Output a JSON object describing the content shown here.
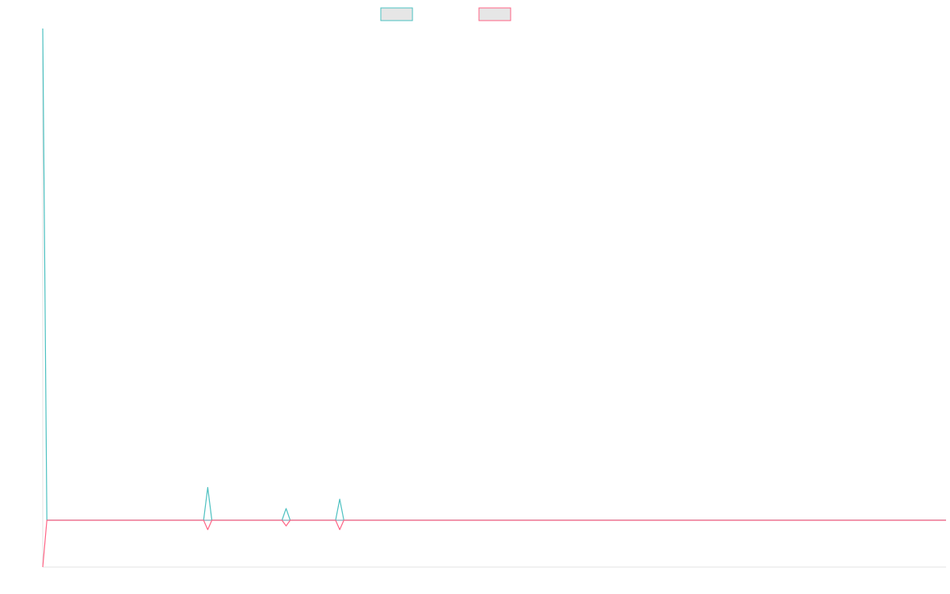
{
  "chart_data": {
    "type": "line",
    "title": "",
    "xlabel": "",
    "ylabel": "",
    "legend": {
      "placement": "top-center",
      "show_labels": false
    },
    "grid": false,
    "x": [
      0,
      1,
      2,
      3,
      4,
      5,
      6,
      7,
      8,
      9,
      10,
      11,
      12,
      13,
      14,
      15,
      16,
      17,
      18,
      19,
      20,
      21,
      22,
      23,
      24,
      25,
      26,
      27,
      28,
      29,
      30,
      31,
      32,
      33,
      34,
      35,
      36,
      37,
      38,
      39,
      40,
      41,
      42,
      43,
      44,
      45,
      46,
      47,
      48,
      49,
      50,
      51,
      52,
      53,
      54,
      55,
      56,
      57,
      58,
      59,
      60,
      61,
      62,
      63,
      64,
      65,
      66,
      67,
      68,
      69,
      70,
      71,
      72,
      73,
      74,
      75,
      76,
      77,
      78,
      79,
      80,
      81,
      82,
      83,
      84,
      85,
      86,
      87,
      88,
      89,
      90,
      91,
      92,
      93,
      94,
      95,
      96,
      97,
      98,
      99,
      100,
      101,
      102,
      103,
      104,
      105,
      106,
      107,
      108,
      109,
      110,
      111,
      112,
      113,
      114,
      115,
      116,
      117,
      118,
      119,
      120,
      121,
      122,
      123,
      124,
      125,
      126,
      127,
      128,
      129,
      130,
      131,
      132,
      133,
      134,
      135,
      136,
      137,
      138,
      139,
      140,
      141,
      142,
      143,
      144,
      145,
      146,
      147,
      148,
      149,
      150,
      151,
      152,
      153,
      154,
      155,
      156,
      157,
      158,
      159,
      160,
      161,
      162,
      163,
      164,
      165,
      166,
      167,
      168,
      169,
      170,
      171,
      172,
      173,
      174,
      175,
      176,
      177,
      178,
      179,
      180,
      181,
      182,
      183,
      184,
      185,
      186,
      187,
      188,
      189,
      190,
      191,
      192,
      193,
      194,
      195,
      196,
      197,
      198,
      199,
      200,
      201,
      202,
      203,
      204,
      205,
      206,
      207,
      208,
      209,
      210,
      211,
      212,
      213,
      214,
      215,
      216,
      217,
      218,
      219
    ],
    "ylim": [
      -10,
      105
    ],
    "series": [
      {
        "color": "#4bc0c0",
        "values": [
          105,
          0,
          0,
          0,
          0,
          0,
          0,
          0,
          0,
          0,
          0,
          0,
          0,
          0,
          0,
          0,
          0,
          0,
          0,
          0,
          0,
          0,
          0,
          0,
          0,
          0,
          0,
          0,
          0,
          0,
          0,
          0,
          0,
          0,
          0,
          0,
          0,
          0,
          0,
          0,
          7,
          0,
          0,
          0,
          0,
          0,
          0,
          0,
          0,
          0,
          0,
          0,
          0,
          0,
          0,
          0,
          0,
          0,
          0,
          2.5,
          0,
          0,
          0,
          0,
          0,
          0,
          0,
          0,
          0,
          0,
          0,
          0,
          4.5,
          0,
          0,
          0,
          0,
          0,
          0,
          0,
          0,
          0,
          0,
          0,
          0,
          0,
          0,
          0,
          0,
          0,
          0,
          0,
          0,
          0,
          0,
          0,
          0,
          0,
          0,
          0,
          0,
          0,
          0,
          0,
          0,
          0,
          0,
          0,
          0,
          0,
          0,
          0,
          0,
          0,
          0,
          0,
          0,
          0,
          0,
          0,
          0,
          0,
          0,
          0,
          0,
          0,
          0,
          0,
          0,
          0,
          0,
          0,
          0,
          0,
          0,
          0,
          0,
          0,
          0,
          0,
          0,
          0,
          0,
          0,
          0,
          0,
          0,
          0,
          0,
          0,
          0,
          0,
          0,
          0,
          0,
          0,
          0,
          0,
          0,
          0,
          0,
          0,
          0,
          0,
          0,
          0,
          0,
          0,
          0,
          0,
          0,
          0,
          0,
          0,
          0,
          0,
          0,
          0,
          0,
          0,
          0,
          0,
          0,
          0,
          0,
          0,
          0,
          0,
          0,
          0,
          0,
          0,
          0,
          0,
          0,
          0,
          0,
          0,
          0,
          0,
          0,
          0,
          0,
          0,
          0,
          0,
          0,
          0,
          0,
          0,
          0,
          0,
          0,
          0,
          0,
          0,
          0,
          0,
          0,
          0
        ]
      },
      {
        "color": "#ff6384",
        "values": [
          -10,
          0,
          0,
          0,
          0,
          0,
          0,
          0,
          0,
          0,
          0,
          0,
          0,
          0,
          0,
          0,
          0,
          0,
          0,
          0,
          0,
          0,
          0,
          0,
          0,
          0,
          0,
          0,
          0,
          0,
          0,
          0,
          0,
          0,
          0,
          0,
          0,
          0,
          0,
          0,
          -2,
          0,
          0,
          0,
          0,
          0,
          0,
          0,
          0,
          0,
          0,
          0,
          0,
          0,
          0,
          0,
          0,
          0,
          0,
          -1.2,
          0,
          0,
          0,
          0,
          0,
          0,
          0,
          0,
          0,
          0,
          0,
          0,
          -2,
          0,
          0,
          0,
          0,
          0,
          0,
          0,
          0,
          0,
          0,
          0,
          0,
          0,
          0,
          0,
          0,
          0,
          0,
          0,
          0,
          0,
          0,
          0,
          0,
          0,
          0,
          0,
          0,
          0,
          0,
          0,
          0,
          0,
          0,
          0,
          0,
          0,
          0,
          0,
          0,
          0,
          0,
          0,
          0,
          0,
          0,
          0,
          0,
          0,
          0,
          0,
          0,
          0,
          0,
          0,
          0,
          0,
          0,
          0,
          0,
          0,
          0,
          0,
          0,
          0,
          0,
          0,
          0,
          0,
          0,
          0,
          0,
          0,
          0,
          0,
          0,
          0,
          0,
          0,
          0,
          0,
          0,
          0,
          0,
          0,
          0,
          0,
          0,
          0,
          0,
          0,
          0,
          0,
          0,
          0,
          0,
          0,
          0,
          0,
          0,
          0,
          0,
          0,
          0,
          0,
          0,
          0,
          0,
          0,
          0,
          0,
          0,
          0,
          0,
          0,
          0,
          0,
          0,
          0,
          0,
          0,
          0,
          0,
          0,
          0,
          0,
          0,
          0,
          0,
          0,
          0,
          0,
          0,
          0,
          0,
          0,
          0,
          0,
          0,
          0,
          0,
          0,
          0,
          0,
          0,
          0,
          0
        ]
      }
    ],
    "baseline_color": "#8aa6b8"
  }
}
